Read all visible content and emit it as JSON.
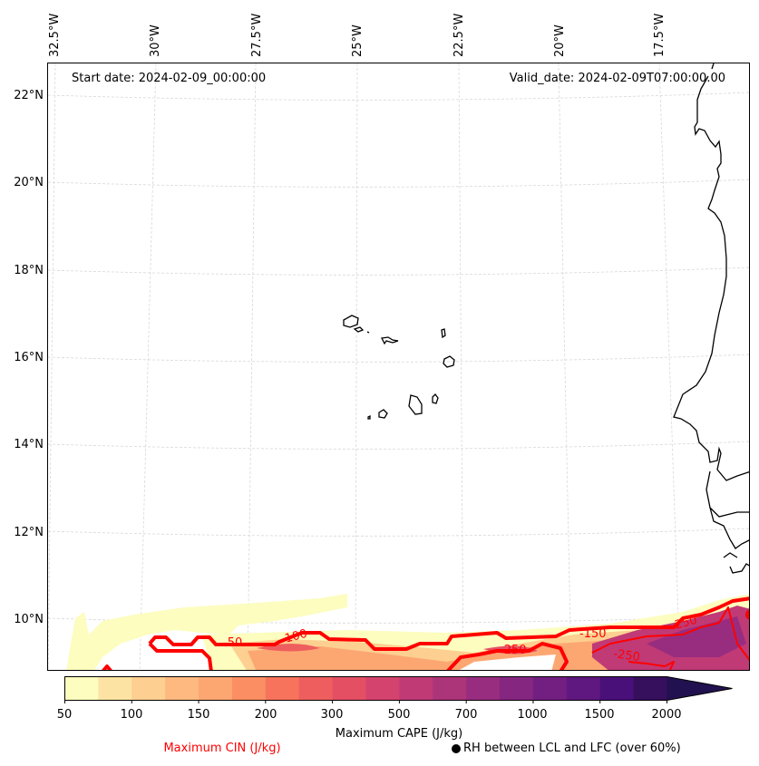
{
  "map": {
    "region": "Cape Verde / West African coast",
    "start_date_label": "Start date: 2024-02-09_00:00:00",
    "valid_date_label": "Valid_date: 2024-02-09T07:00:00.00",
    "lon_ticks": [
      "32.5°W",
      "30°W",
      "27.5°W",
      "25°W",
      "22.5°W",
      "20°W",
      "17.5°W"
    ],
    "lat_ticks": [
      "22°N",
      "20°N",
      "18°N",
      "16°N",
      "14°N",
      "12°N",
      "10°N"
    ],
    "gridlines": true,
    "cin_contour_labels": [
      "-50",
      "-100",
      "-150",
      "-250",
      "-250",
      "-250",
      "-250"
    ],
    "cin_contour_color": "#ff0000",
    "coastline_color": "#000000"
  },
  "colorbar": {
    "title": "Maximum CAPE (J/kg)",
    "tick_labels": [
      "50",
      "100",
      "150",
      "200",
      "300",
      "500",
      "700",
      "1000",
      "1500",
      "2000"
    ],
    "levels": [
      50,
      75,
      100,
      125,
      150,
      175,
      200,
      250,
      300,
      400,
      500,
      600,
      700,
      800,
      1000,
      1250,
      1500,
      1750,
      2000,
      2500
    ],
    "colors": [
      "#fcfdbf",
      "#fde3a3",
      "#fdcf90",
      "#fdb97f",
      "#fca772",
      "#fb8f63",
      "#f7735c",
      "#ef5e5e",
      "#e44f64",
      "#d3436e",
      "#c03a76",
      "#ac3479",
      "#982d80",
      "#852681",
      "#721f81",
      "#5f187f",
      "#4a1079",
      "#360f5d",
      "#221150"
    ],
    "extend": "max"
  },
  "legend": {
    "cin_title": "Maximum CIN (J/kg)",
    "rh_label": "RH between LCL and LFC (over 60%)"
  }
}
